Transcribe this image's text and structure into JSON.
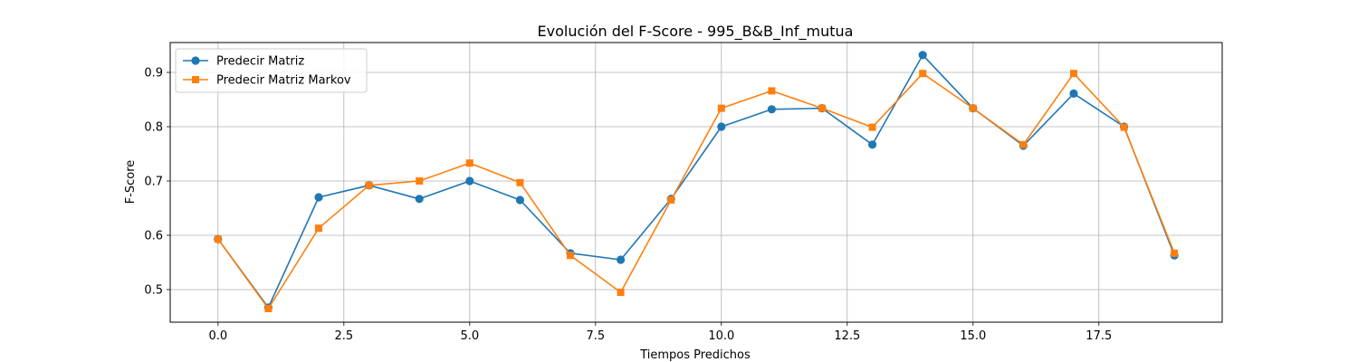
{
  "chart_data": {
    "type": "line",
    "title": "Evolución del F-Score - 995_B&B_Inf_mutua",
    "xlabel": "Tiempos Predichos",
    "ylabel": "F-Score",
    "xlim": [
      -0.95,
      19.95
    ],
    "ylim": [
      0.44,
      0.955
    ],
    "xticks": [
      0.0,
      2.5,
      5.0,
      7.5,
      10.0,
      12.5,
      15.0,
      17.5
    ],
    "xtick_labels": [
      "0.0",
      "2.5",
      "5.0",
      "7.5",
      "10.0",
      "12.5",
      "15.0",
      "17.5"
    ],
    "yticks": [
      0.5,
      0.6,
      0.7,
      0.8,
      0.9
    ],
    "ytick_labels": [
      "0.5",
      "0.6",
      "0.7",
      "0.8",
      "0.9"
    ],
    "grid": true,
    "legend_position": "upper-left",
    "x": [
      0,
      1,
      2,
      3,
      4,
      5,
      6,
      7,
      8,
      9,
      10,
      11,
      12,
      13,
      14,
      15,
      16,
      17,
      18,
      19
    ],
    "series": [
      {
        "name": "Predecir Matriz",
        "color": "#1f77b4",
        "marker": "circle",
        "values": [
          0.593,
          0.467,
          0.67,
          0.692,
          0.667,
          0.7,
          0.665,
          0.567,
          0.555,
          0.667,
          0.8,
          0.832,
          0.834,
          0.767,
          0.932,
          0.834,
          0.765,
          0.861,
          0.8,
          0.563
        ]
      },
      {
        "name": "Predecir Matriz Markov",
        "color": "#ff7f0e",
        "marker": "square",
        "values": [
          0.593,
          0.465,
          0.613,
          0.692,
          0.7,
          0.733,
          0.697,
          0.563,
          0.495,
          0.665,
          0.834,
          0.866,
          0.834,
          0.799,
          0.898,
          0.834,
          0.767,
          0.898,
          0.799,
          0.567
        ]
      }
    ]
  }
}
